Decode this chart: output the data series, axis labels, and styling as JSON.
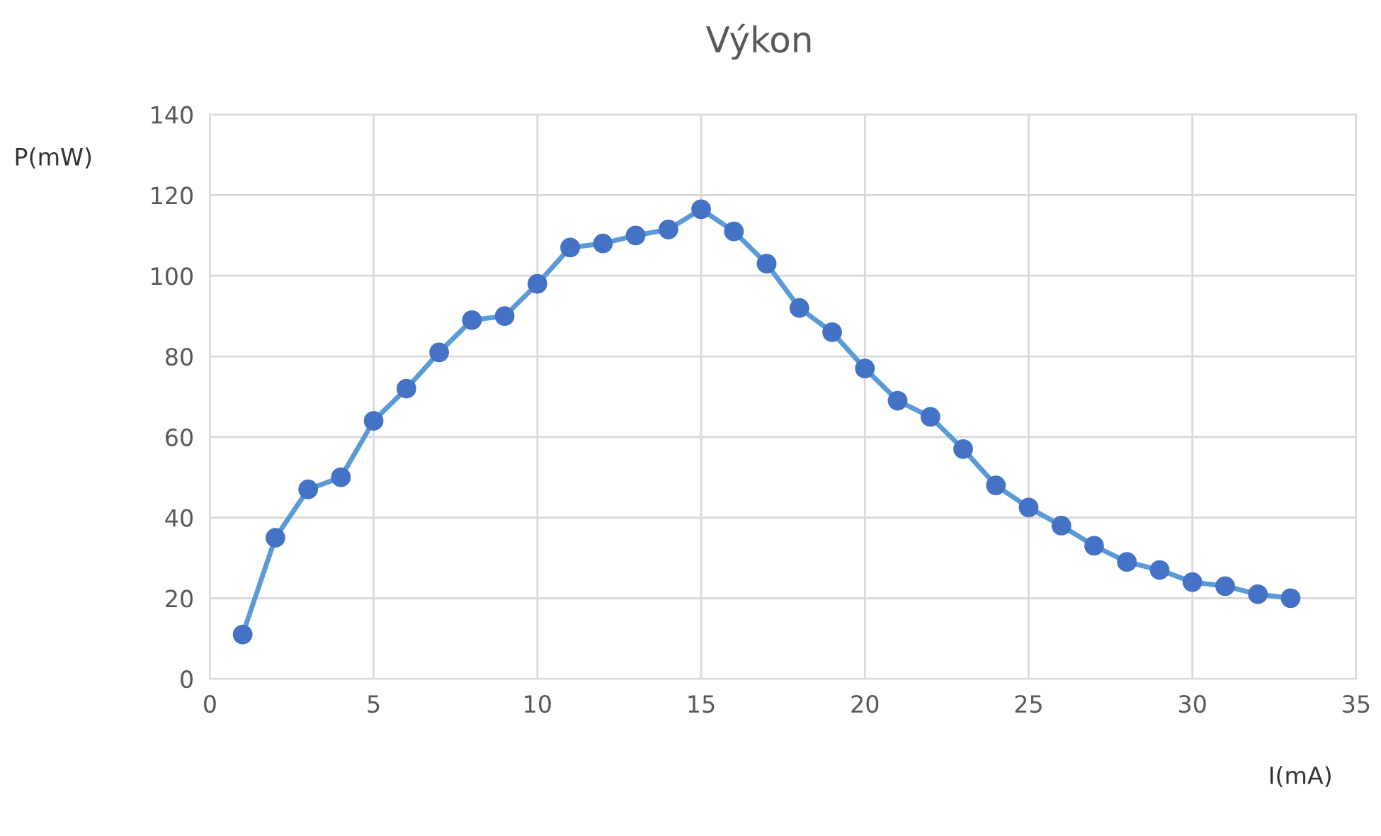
{
  "chart_data": {
    "type": "line",
    "title": "Výkon",
    "xlabel": "I(mA)",
    "ylabel": "P(mW)",
    "x": [
      1,
      2,
      3,
      4,
      5,
      6,
      7,
      8,
      9,
      10,
      11,
      12,
      13,
      14,
      15,
      16,
      17,
      18,
      19,
      20,
      21,
      22,
      23,
      24,
      25,
      26,
      27,
      28,
      29,
      30,
      31,
      32,
      33
    ],
    "series": [
      {
        "color": "#4472c4",
        "values": [
          11,
          35,
          47,
          50,
          64,
          72,
          81,
          89,
          90,
          98,
          107,
          108,
          110,
          111.5,
          116.5,
          111,
          103,
          92,
          86,
          77,
          69,
          65,
          57,
          48,
          42.5,
          38,
          33,
          29,
          27,
          24,
          23,
          21,
          20
        ]
      }
    ],
    "xlim": [
      0,
      35
    ],
    "xticks": [
      0,
      5,
      10,
      15,
      20,
      25,
      30,
      35
    ],
    "ylim": [
      0,
      140
    ],
    "yticks": [
      0,
      20,
      40,
      60,
      80,
      100,
      120,
      140
    ],
    "grid": true,
    "marker": "circle",
    "line_style": "solid"
  }
}
